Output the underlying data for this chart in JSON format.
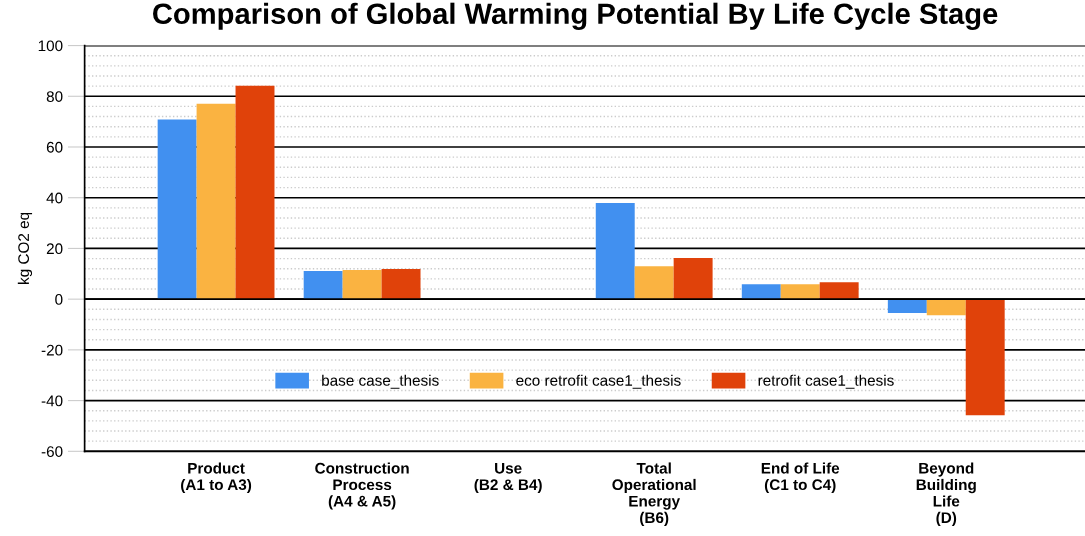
{
  "chart_data": {
    "type": "bar",
    "title": "Comparison of Global Warming Potential By Life Cycle Stage",
    "ylabel": "kg CO2 eq",
    "categories": [
      "Product\n(A1 to A3)",
      "Construction\nProcess\n(A4 & A5)",
      "Use\n(B2 & B4)",
      "Total\nOperational\nEnergy\n(B6)",
      "End of Life\n(C1 to C4)",
      "Beyond\nBuilding\nLife\n(D)"
    ],
    "series": [
      {
        "name": "base case_thesis",
        "color": "#4190f0",
        "values": [
          70.8,
          11.1,
          0,
          37.9,
          5.9,
          -5.5
        ]
      },
      {
        "name": "eco retrofit case1_thesis",
        "color": "#fab341",
        "values": [
          77.1,
          11.5,
          0,
          13.0,
          5.9,
          -6.3
        ]
      },
      {
        "name": "retrofit case1_thesis",
        "color": "#e0420a",
        "values": [
          84.2,
          11.9,
          0,
          16.2,
          6.7,
          -45.8
        ]
      }
    ],
    "ylim": [
      -60,
      100
    ],
    "yticks": [
      -60,
      {
        "value": -56,
        "label": null
      },
      {
        "value": -52,
        "label": null
      },
      {
        "value": -48,
        "label": null
      },
      {
        "value": -44,
        "label": null
      },
      -40,
      {
        "value": -36,
        "label": null
      },
      {
        "value": -32,
        "label": null
      },
      {
        "value": -28,
        "label": null
      },
      {
        "value": -24,
        "label": null
      },
      -20,
      {
        "value": -16,
        "label": null
      },
      {
        "value": -12,
        "label": null
      },
      {
        "value": -8,
        "label": null
      },
      {
        "value": -4,
        "label": null
      },
      0,
      {
        "value": 4,
        "label": null
      },
      {
        "value": 8,
        "label": null
      },
      {
        "value": 12,
        "label": null
      },
      {
        "value": 16,
        "label": null
      },
      20,
      {
        "value": 24,
        "label": null
      },
      {
        "value": 28,
        "label": null
      },
      {
        "value": 32,
        "label": null
      },
      {
        "value": 36,
        "label": null
      },
      40,
      {
        "value": 44,
        "label": null
      },
      {
        "value": 48,
        "label": null
      },
      {
        "value": 52,
        "label": null
      },
      {
        "value": 56,
        "label": null
      },
      60,
      {
        "value": 64,
        "label": null
      },
      {
        "value": 68,
        "label": null
      },
      {
        "value": 72,
        "label": null
      },
      {
        "value": 76,
        "label": null
      },
      80,
      {
        "value": 84,
        "label": null
      },
      {
        "value": 88,
        "label": null
      },
      {
        "value": 92,
        "label": null
      },
      {
        "value": 96,
        "label": null
      },
      100
    ],
    "grid": "y",
    "legend": "bottom"
  }
}
